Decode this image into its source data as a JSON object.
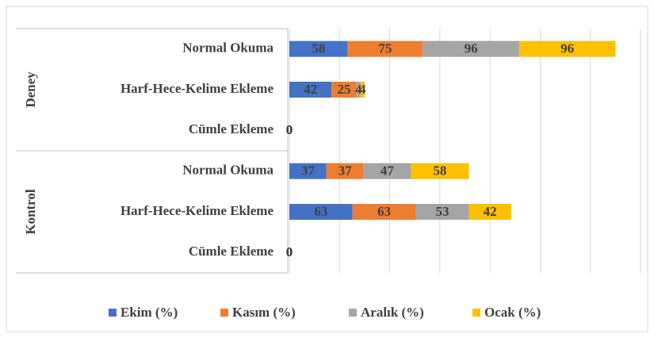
{
  "chart_data": {
    "type": "stacked-bar-horizontal",
    "groups": [
      {
        "label": "Deney",
        "categories": [
          "Normal Okuma",
          "Harf-Hece-Kelime Ekleme",
          "Cümle Ekleme"
        ]
      },
      {
        "label": "Kontrol",
        "categories": [
          "Normal Okuma",
          "Harf-Hece-Kelime Ekleme",
          "Cümle Ekleme"
        ]
      }
    ],
    "series": [
      {
        "name": "Ekim (%)",
        "color": "#4472c4",
        "values": [
          58,
          42,
          0,
          37,
          63,
          0
        ]
      },
      {
        "name": "Kasım (%)",
        "color": "#ed7d31",
        "values": [
          75,
          25,
          0,
          37,
          63,
          0
        ]
      },
      {
        "name": "Aralık (%)",
        "color": "#a5a5a5",
        "values": [
          96,
          4,
          0,
          47,
          53,
          0
        ]
      },
      {
        "name": "Ocak (%)",
        "color": "#ffc000",
        "values": [
          96,
          4,
          0,
          58,
          42,
          0
        ]
      }
    ],
    "xlim": [
      0,
      350
    ],
    "xticks": [
      0,
      50,
      100,
      150,
      200,
      250,
      300,
      350
    ],
    "grid": true,
    "legend": "bottom"
  }
}
